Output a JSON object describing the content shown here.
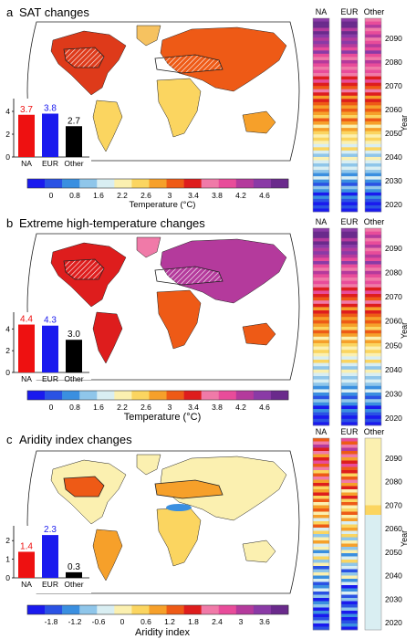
{
  "colors": {
    "na": "#ee1111",
    "eur": "#1a1aee",
    "other": "#000000",
    "ocean": "#ffffff",
    "land": "#f7e9a8",
    "sat_scale": [
      "#1a1aee",
      "#2a52e4",
      "#3a8fe0",
      "#8fc6ea",
      "#d9eef2",
      "#fbf0b0",
      "#fbd560",
      "#f6a02a",
      "#ee5a16",
      "#de1d1d",
      "#f07aa8",
      "#e84c9a",
      "#b43a9c",
      "#8a3aa6",
      "#6a2a8c"
    ],
    "ai_scale": [
      "#1a1aee",
      "#2a52e4",
      "#3a8fe0",
      "#8fc6ea",
      "#d9eef2",
      "#fbf0b0",
      "#fbd560",
      "#f6a02a",
      "#ee5a16",
      "#de1d1d",
      "#f07aa8",
      "#e84c9a",
      "#b43a9c",
      "#8a3aa6",
      "#6a2a8c"
    ]
  },
  "panels": [
    {
      "letter": "a",
      "title": "SAT changes",
      "colorbar_label": "Temperature (°C)",
      "colorbar_ticks": [
        "0",
        "0.8",
        "1.6",
        "2.2",
        "2.6",
        "3",
        "3.4",
        "3.8",
        "4.2",
        "4.6"
      ],
      "year_label": "Year",
      "year_ticks": [
        "2090",
        "2080",
        "2070",
        "2060",
        "2050",
        "2040",
        "2030",
        "2020"
      ],
      "strip_labels": [
        "NA",
        "EUR",
        "Other"
      ],
      "chart_data": {
        "type": "bar",
        "categories": [
          "NA",
          "EUR",
          "Other"
        ],
        "values": [
          3.7,
          3.8,
          2.7
        ],
        "value_labels": [
          "3.7",
          "3.8",
          "2.7"
        ],
        "yticks": [
          "0",
          "2",
          "4"
        ],
        "ylim": [
          0,
          4.8
        ]
      }
    },
    {
      "letter": "b",
      "title": "Extreme high-temperature changes",
      "colorbar_label": "Temperature (°C)",
      "colorbar_ticks": [
        "0",
        "0.8",
        "1.6",
        "2.2",
        "2.6",
        "3",
        "3.4",
        "3.8",
        "4.2",
        "4.6"
      ],
      "year_label": "Year",
      "year_ticks": [
        "2090",
        "2080",
        "2070",
        "2060",
        "2050",
        "2040",
        "2030",
        "2020"
      ],
      "strip_labels": [
        "NA",
        "EUR",
        "Other"
      ],
      "chart_data": {
        "type": "bar",
        "categories": [
          "NA",
          "EUR",
          "Other"
        ],
        "values": [
          4.4,
          4.3,
          3.0
        ],
        "value_labels": [
          "4.4",
          "4.3",
          "3.0"
        ],
        "yticks": [
          "0",
          "2",
          "4"
        ],
        "ylim": [
          0,
          5.2
        ]
      }
    },
    {
      "letter": "c",
      "title": "Aridity index changes",
      "colorbar_label": "Aridity index",
      "colorbar_ticks": [
        "-1.8",
        "-1.2",
        "-0.6",
        "0",
        "0.6",
        "1.2",
        "1.8",
        "2.4",
        "3",
        "3.6"
      ],
      "year_label": "Year",
      "year_ticks": [
        "2090",
        "2080",
        "2070",
        "2060",
        "2050",
        "2040",
        "2030",
        "2020"
      ],
      "strip_labels": [
        "NA",
        "EUR",
        "Other"
      ],
      "chart_data": {
        "type": "bar",
        "categories": [
          "NA",
          "EUR",
          "Other"
        ],
        "values": [
          1.4,
          2.3,
          0.3
        ],
        "value_labels": [
          "1.4",
          "2.3",
          "0.3"
        ],
        "yticks": [
          "0",
          "1",
          "2"
        ],
        "ylim": [
          0,
          2.6
        ]
      }
    }
  ]
}
